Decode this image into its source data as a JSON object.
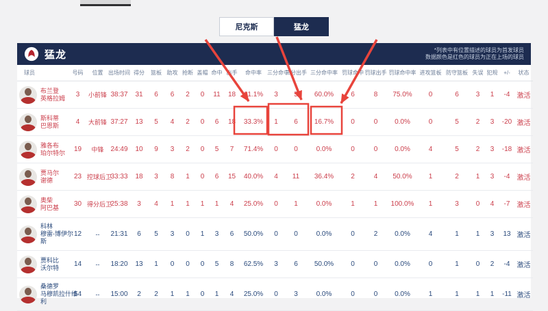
{
  "tabs": [
    {
      "label": "尼克斯",
      "active": false
    },
    {
      "label": "猛龙",
      "active": true
    }
  ],
  "team_header": {
    "name": "猛龙",
    "note_line1": "*列表中有位置描述的球员为首发球员",
    "note_line2": "数据颜色是红色的球员为正在上场的球员"
  },
  "table": {
    "columns": [
      "球员",
      "号码",
      "位置",
      "出场时间",
      "得分",
      "篮板",
      "助攻",
      "抢断",
      "盖帽",
      "命中",
      "出手",
      "命中率",
      "三分命中",
      "三分出手",
      "三分命中率",
      "罚球命中",
      "罚球出手",
      "罚球命中率",
      "进攻篮板",
      "防守篮板",
      "失误",
      "犯规",
      "+/-",
      "状态"
    ],
    "rows": [
      {
        "name_lines": [
          "布兰登",
          "英格拉姆"
        ],
        "on_court": true,
        "stats": [
          "3",
          "小前锋",
          "38:37",
          "31",
          "6",
          "6",
          "2",
          "0",
          "11",
          "18",
          "61.1%",
          "3",
          "5",
          "60.0%",
          "6",
          "8",
          "75.0%",
          "0",
          "6",
          "3",
          "1",
          "-4",
          "激活"
        ]
      },
      {
        "name_lines": [
          "斯科蒂",
          "巴恩斯"
        ],
        "on_court": true,
        "stats": [
          "4",
          "大前锋",
          "37:27",
          "13",
          "5",
          "4",
          "2",
          "0",
          "6",
          "18",
          "33.3%",
          "1",
          "6",
          "16.7%",
          "0",
          "0",
          "0.0%",
          "0",
          "5",
          "2",
          "3",
          "-20",
          "激活"
        ]
      },
      {
        "name_lines": [
          "雅各布",
          "珀尔特尔"
        ],
        "on_court": true,
        "stats": [
          "19",
          "中锋",
          "24:49",
          "10",
          "9",
          "3",
          "2",
          "0",
          "5",
          "7",
          "71.4%",
          "0",
          "0",
          "0.0%",
          "0",
          "0",
          "0.0%",
          "4",
          "5",
          "2",
          "3",
          "-18",
          "激活"
        ]
      },
      {
        "name_lines": [
          "贾马尔",
          "谢德"
        ],
        "on_court": true,
        "stats": [
          "23",
          "控球后卫",
          "33:33",
          "18",
          "3",
          "8",
          "1",
          "0",
          "6",
          "15",
          "40.0%",
          "4",
          "11",
          "36.4%",
          "2",
          "4",
          "50.0%",
          "1",
          "2",
          "1",
          "3",
          "-4",
          "激活"
        ]
      },
      {
        "name_lines": [
          "奥柴",
          "阿巴基"
        ],
        "on_court": true,
        "stats": [
          "30",
          "得分后卫",
          "25:38",
          "3",
          "4",
          "1",
          "1",
          "1",
          "1",
          "4",
          "25.0%",
          "0",
          "1",
          "0.0%",
          "1",
          "1",
          "100.0%",
          "1",
          "3",
          "0",
          "4",
          "-7",
          "激活"
        ]
      },
      {
        "name_lines": [
          "科林",
          "穆雷-博伊尔",
          "斯"
        ],
        "on_court": false,
        "stats": [
          "12",
          "--",
          "21:31",
          "6",
          "5",
          "3",
          "0",
          "1",
          "3",
          "6",
          "50.0%",
          "0",
          "0",
          "0.0%",
          "0",
          "2",
          "0.0%",
          "4",
          "1",
          "1",
          "3",
          "13",
          "激活"
        ]
      },
      {
        "name_lines": [
          "贾科比",
          "沃尔特"
        ],
        "on_court": false,
        "stats": [
          "14",
          "--",
          "18:20",
          "13",
          "1",
          "0",
          "0",
          "0",
          "5",
          "8",
          "62.5%",
          "3",
          "6",
          "50.0%",
          "0",
          "0",
          "0.0%",
          "0",
          "1",
          "0",
          "2",
          "-4",
          "激活"
        ]
      },
      {
        "name_lines": [
          "桑德罗",
          "马穆凯拉什维",
          "利"
        ],
        "on_court": false,
        "stats": [
          "54",
          "--",
          "15:00",
          "2",
          "2",
          "1",
          "1",
          "0",
          "1",
          "4",
          "25.0%",
          "0",
          "3",
          "0.0%",
          "0",
          "0",
          "0.0%",
          "1",
          "1",
          "1",
          "1",
          "-11",
          "激活"
        ]
      }
    ]
  },
  "annotations": {
    "color": "#e8443c",
    "highlighted_player": "斯科蒂·巴恩斯",
    "highlighted_values": [
      "33.3%",
      "1",
      "6",
      "16.7%"
    ]
  },
  "colors": {
    "navy": "#1d2c50",
    "active_player_text": "#cb3e4b",
    "bench_player_text": "#2a4a7c",
    "annotation": "#e8443c"
  }
}
